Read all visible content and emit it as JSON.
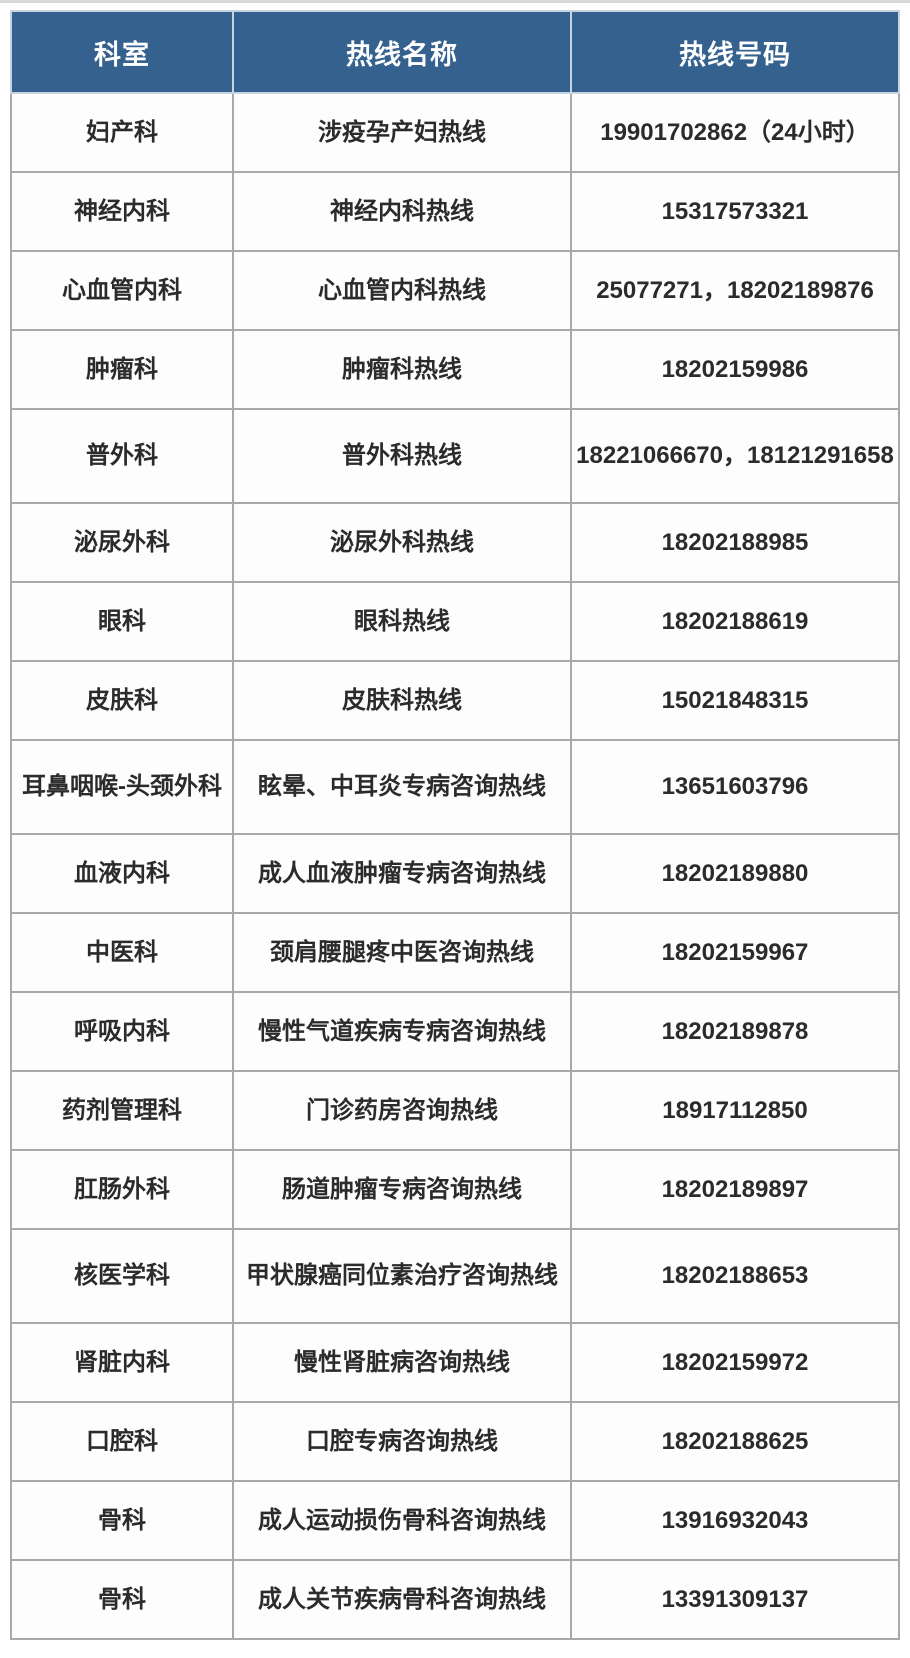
{
  "table": {
    "columns": [
      "科室",
      "热线名称",
      "热线号码"
    ],
    "rows": [
      {
        "dept": "妇产科",
        "hotline": "涉疫孕产妇热线",
        "phone": "19901702862（24小时）"
      },
      {
        "dept": "神经内科",
        "hotline": "神经内科热线",
        "phone": "15317573321"
      },
      {
        "dept": "心血管内科",
        "hotline": "心血管内科热线",
        "phone": "25077271，18202189876"
      },
      {
        "dept": "肿瘤科",
        "hotline": "肿瘤科热线",
        "phone": "18202159986"
      },
      {
        "dept": "普外科",
        "hotline": "普外科热线",
        "phone": "18221066670，18121291658"
      },
      {
        "dept": "泌尿外科",
        "hotline": "泌尿外科热线",
        "phone": "18202188985"
      },
      {
        "dept": "眼科",
        "hotline": "眼科热线",
        "phone": "18202188619"
      },
      {
        "dept": "皮肤科",
        "hotline": "皮肤科热线",
        "phone": "15021848315"
      },
      {
        "dept": "耳鼻咽喉-头颈外科",
        "hotline": "眩晕、中耳炎专病咨询热线",
        "phone": "13651603796"
      },
      {
        "dept": "血液内科",
        "hotline": "成人血液肿瘤专病咨询热线",
        "phone": "18202189880"
      },
      {
        "dept": "中医科",
        "hotline": "颈肩腰腿疼中医咨询热线",
        "phone": "18202159967"
      },
      {
        "dept": "呼吸内科",
        "hotline": "慢性气道疾病专病咨询热线",
        "phone": "18202189878"
      },
      {
        "dept": "药剂管理科",
        "hotline": "门诊药房咨询热线",
        "phone": "18917112850"
      },
      {
        "dept": "肛肠外科",
        "hotline": "肠道肿瘤专病咨询热线",
        "phone": "18202189897"
      },
      {
        "dept": "核医学科",
        "hotline": "甲状腺癌同位素治疗咨询热线",
        "phone": "18202188653"
      },
      {
        "dept": "肾脏内科",
        "hotline": "慢性肾脏病咨询热线",
        "phone": "18202159972"
      },
      {
        "dept": "口腔科",
        "hotline": "口腔专病咨询热线",
        "phone": "18202188625"
      },
      {
        "dept": "骨科",
        "hotline": "成人运动损伤骨科咨询热线",
        "phone": "13916932043"
      },
      {
        "dept": "骨科",
        "hotline": "成人关节疾病骨科咨询热线",
        "phone": "13391309137"
      }
    ],
    "tall_row_indexes": [
      4,
      8,
      14
    ],
    "colors": {
      "header_bg": "#35618f",
      "header_text": "#ffffff",
      "header_divider": "#c7d4de",
      "body_border": "#a9a9a9",
      "body_text": "#2b2b2b"
    }
  }
}
